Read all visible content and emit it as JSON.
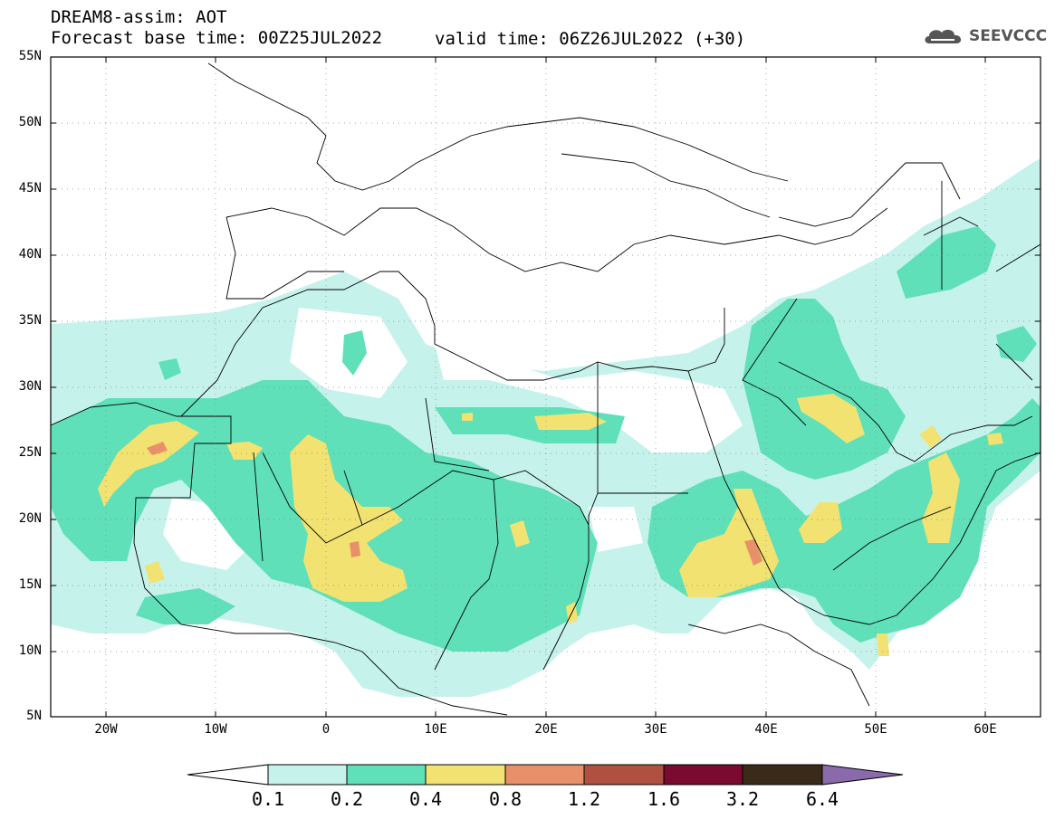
{
  "header": {
    "title_line1": "DREAM8-assim: AOT",
    "title_line2": "Forecast base time: 00Z25JUL2022",
    "valid_time": "valid time: 06Z26JUL2022 (+30)",
    "logo_text": "SEEVCCC"
  },
  "map": {
    "lat_labels": [
      "55N",
      "50N",
      "45N",
      "40N",
      "35N",
      "30N",
      "25N",
      "20N",
      "15N",
      "10N",
      "5N"
    ],
    "lon_labels": [
      "20W",
      "10W",
      "0",
      "10E",
      "20E",
      "30E",
      "40E",
      "50E",
      "60E"
    ],
    "lat_values": [
      55,
      50,
      45,
      40,
      35,
      30,
      25,
      20,
      15,
      10,
      5
    ],
    "lon_values": [
      -20,
      -10,
      0,
      10,
      20,
      30,
      40,
      50,
      60
    ],
    "extent": {
      "lon_min": -25,
      "lon_max": 65,
      "lat_min": 5,
      "lat_max": 55
    }
  },
  "colorbar": {
    "labels": [
      "0.1",
      "0.2",
      "0.4",
      "0.8",
      "1.2",
      "1.6",
      "3.2",
      "6.4"
    ],
    "colors": [
      "#c6f2ec",
      "#5fe0b8",
      "#f2e272",
      "#e8906a",
      "#b05040",
      "#7a0a30",
      "#3a2a1a",
      "#8a6aaa"
    ]
  }
}
